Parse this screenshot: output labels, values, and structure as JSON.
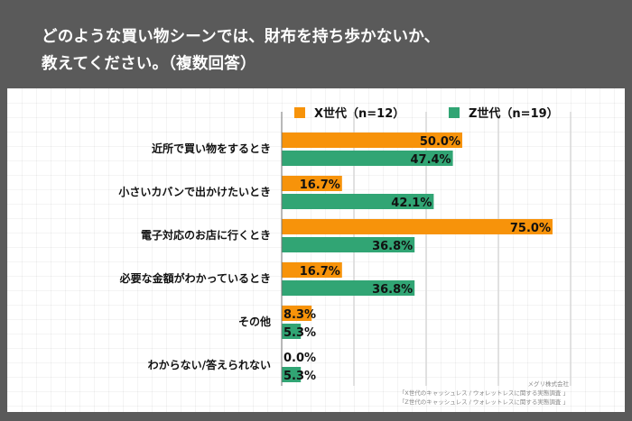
{
  "title_lines": [
    "どのような買い物シーンでは、財布を持ち歩かないか、",
    "教えてください。（複数回答）"
  ],
  "chart_data": {
    "type": "bar",
    "orientation": "horizontal",
    "title": "どのような買い物シーンでは、財布を持ち歩かないか、教えてください。（複数回答）",
    "categories": [
      "近所で買い物をするとき",
      "小さいカバンで出かけたいとき",
      "電子対応のお店に行くとき",
      "必要な金額がわかっているとき",
      "その他",
      "わからない/答えられない"
    ],
    "series": [
      {
        "name": "X世代（n=12）",
        "color": "#F7930A",
        "values": [
          50.0,
          16.7,
          75.0,
          16.7,
          8.3,
          0.0
        ]
      },
      {
        "name": "Z世代（n=19）",
        "color": "#31A574",
        "values": [
          47.4,
          42.1,
          36.8,
          36.8,
          5.3,
          5.3
        ]
      }
    ],
    "value_format": "0.0%",
    "xlim": [
      0,
      80
    ],
    "grid": true,
    "gridline_values": [
      20,
      40,
      60,
      80
    ],
    "legend_position": "top"
  },
  "source": {
    "company": "メグリ株式会社",
    "lines": [
      "「X世代のキャッシュレス / ウォレットレスに関する実態調査 」",
      "「Z世代のキャッシュレス / ウォレットレスに関する実態調査 」"
    ]
  }
}
